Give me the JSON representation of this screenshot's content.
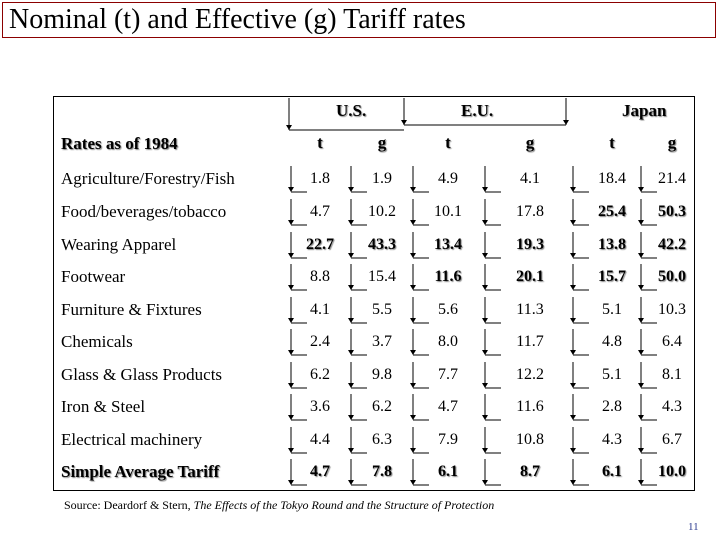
{
  "title": "Nominal (t) and Effective (g) Tariff rates",
  "table": {
    "corner_label": "Rates as of 1984",
    "groups": [
      "U.S.",
      "E.U.",
      "Japan"
    ],
    "col_headers": [
      "t",
      "g",
      "t",
      "g",
      "t",
      "g"
    ],
    "rows": [
      {
        "label": "Agriculture/Forestry/Fish",
        "values": [
          "1.8",
          "1.9",
          "4.9",
          "4.1",
          "18.4",
          "21.4"
        ],
        "bold": [
          false,
          false,
          false,
          false,
          false,
          false
        ],
        "label_bold": false
      },
      {
        "label": "Food/beverages/tobacco",
        "values": [
          "4.7",
          "10.2",
          "10.1",
          "17.8",
          "25.4",
          "50.3"
        ],
        "bold": [
          false,
          false,
          false,
          false,
          true,
          true
        ],
        "label_bold": false
      },
      {
        "label": "Wearing Apparel",
        "values": [
          "22.7",
          "43.3",
          "13.4",
          "19.3",
          "13.8",
          "42.2"
        ],
        "bold": [
          true,
          true,
          true,
          true,
          true,
          true
        ],
        "label_bold": false
      },
      {
        "label": "Footwear",
        "values": [
          "8.8",
          "15.4",
          "11.6",
          "20.1",
          "15.7",
          "50.0"
        ],
        "bold": [
          false,
          false,
          true,
          true,
          true,
          true
        ],
        "label_bold": false
      },
      {
        "label": "Furniture & Fixtures",
        "values": [
          "4.1",
          "5.5",
          "5.6",
          "11.3",
          "5.1",
          "10.3"
        ],
        "bold": [
          false,
          false,
          false,
          false,
          false,
          false
        ],
        "label_bold": false
      },
      {
        "label": "Chemicals",
        "values": [
          "2.4",
          "3.7",
          "8.0",
          "11.7",
          "4.8",
          "6.4"
        ],
        "bold": [
          false,
          false,
          false,
          false,
          false,
          false
        ],
        "label_bold": false
      },
      {
        "label": "Glass & Glass Products",
        "values": [
          "6.2",
          "9.8",
          "7.7",
          "12.2",
          "5.1",
          "8.1"
        ],
        "bold": [
          false,
          false,
          false,
          false,
          false,
          false
        ],
        "label_bold": false
      },
      {
        "label": "Iron & Steel",
        "values": [
          "3.6",
          "6.2",
          "4.7",
          "11.6",
          "2.8",
          "4.3"
        ],
        "bold": [
          false,
          false,
          false,
          false,
          false,
          false
        ],
        "label_bold": false
      },
      {
        "label": "Electrical machinery",
        "values": [
          "4.4",
          "6.3",
          "7.9",
          "10.8",
          "4.3",
          "6.7"
        ],
        "bold": [
          false,
          false,
          false,
          false,
          false,
          false
        ],
        "label_bold": false
      },
      {
        "label": "Simple Average Tariff",
        "values": [
          "4.7",
          "7.8",
          "6.1",
          "8.7",
          "6.1",
          "10.0"
        ],
        "bold": [
          true,
          true,
          true,
          true,
          true,
          true
        ],
        "label_bold": true
      }
    ]
  },
  "source": {
    "prefix": "Source: Deardorf & Stern, ",
    "title": "The Effects of the Tokyo Round and the Structure of Protection"
  },
  "page_number": "11",
  "colors": {
    "title_border": "#8b0000",
    "page_number": "#2b3a8f"
  }
}
